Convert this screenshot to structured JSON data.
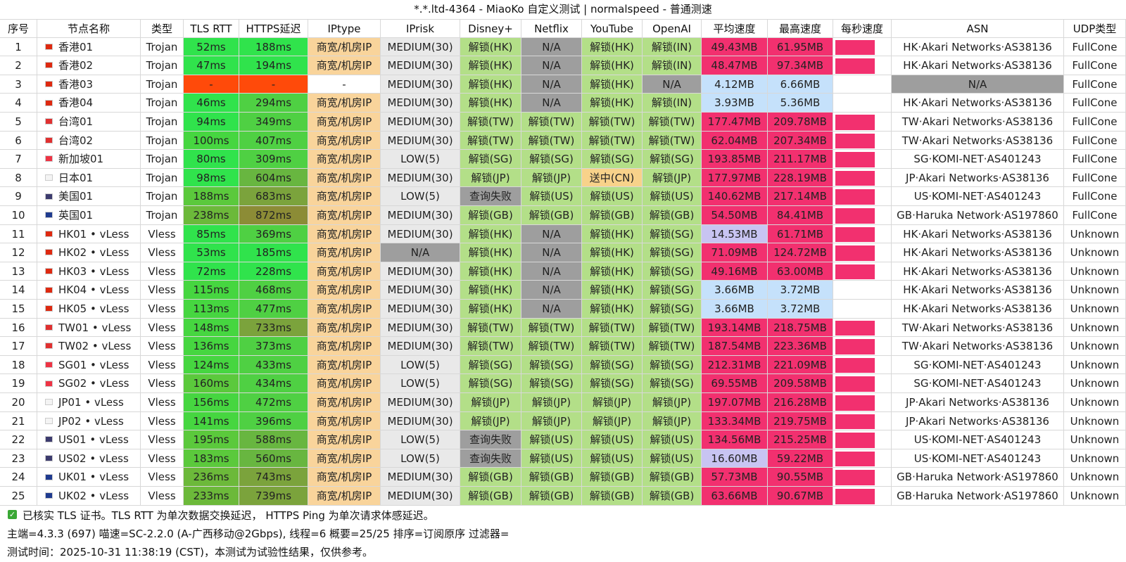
{
  "title": "*.*.ltd-4364 - MiaoKo 自定义测试 | normalspeed - 普通测速",
  "columns": [
    "序号",
    "节点名称",
    "类型",
    "TLS RTT",
    "HTTPS延迟",
    "IPtype",
    "IPrisk",
    "Disney+",
    "Netflix",
    "YouTube",
    "OpenAI",
    "平均速度",
    "最高速度",
    "每秒速度",
    "ASN",
    "UDP类型"
  ],
  "rows": [
    [
      "1",
      "香港01",
      "Trojan",
      "52ms",
      "188ms",
      "商宽/机房IP",
      "MEDIUM(30)",
      "解锁(HK)",
      "N/A",
      "解锁(HK)",
      "解锁(IN)",
      "49.43MB",
      "61.95MB",
      null,
      "HK·Akari Networks·AS38136",
      "FullCone"
    ],
    [
      "2",
      "香港02",
      "Trojan",
      "47ms",
      "194ms",
      "商宽/机房IP",
      "MEDIUM(30)",
      "解锁(HK)",
      "N/A",
      "解锁(HK)",
      "解锁(IN)",
      "48.47MB",
      "97.34MB",
      null,
      "HK·Akari Networks·AS38136",
      "FullCone"
    ],
    [
      "3",
      "香港03",
      "Trojan",
      "-",
      "-",
      "-",
      "MEDIUM(30)",
      "解锁(HK)",
      "N/A",
      "解锁(HK)",
      "N/A",
      "4.12MB",
      "6.66MB",
      null,
      "N/A",
      "FullCone"
    ],
    [
      "4",
      "香港04",
      "Trojan",
      "46ms",
      "294ms",
      "商宽/机房IP",
      "MEDIUM(30)",
      "解锁(HK)",
      "N/A",
      "解锁(HK)",
      "解锁(IN)",
      "3.93MB",
      "5.36MB",
      null,
      "HK·Akari Networks·AS38136",
      "FullCone"
    ],
    [
      "5",
      "台湾01",
      "Trojan",
      "94ms",
      "349ms",
      "商宽/机房IP",
      "MEDIUM(30)",
      "解锁(TW)",
      "解锁(TW)",
      "解锁(TW)",
      "解锁(TW)",
      "177.47MB",
      "209.78MB",
      null,
      "TW·Akari Networks·AS38136",
      "FullCone"
    ],
    [
      "6",
      "台湾02",
      "Trojan",
      "100ms",
      "407ms",
      "商宽/机房IP",
      "MEDIUM(30)",
      "解锁(TW)",
      "解锁(TW)",
      "解锁(TW)",
      "解锁(TW)",
      "62.04MB",
      "207.34MB",
      null,
      "TW·Akari Networks·AS38136",
      "FullCone"
    ],
    [
      "7",
      "新加坡01",
      "Trojan",
      "80ms",
      "309ms",
      "商宽/机房IP",
      "LOW(5)",
      "解锁(SG)",
      "解锁(SG)",
      "解锁(SG)",
      "解锁(SG)",
      "193.85MB",
      "211.17MB",
      null,
      "SG·KOMI-NET·AS401243",
      "FullCone"
    ],
    [
      "8",
      "日本01",
      "Trojan",
      "98ms",
      "604ms",
      "商宽/机房IP",
      "MEDIUM(30)",
      "解锁(JP)",
      "解锁(JP)",
      "送中(CN)",
      "解锁(JP)",
      "177.97MB",
      "228.19MB",
      null,
      "JP·Akari Networks·AS38136",
      "FullCone"
    ],
    [
      "9",
      "美国01",
      "Trojan",
      "188ms",
      "683ms",
      "商宽/机房IP",
      "LOW(5)",
      "查询失败",
      "解锁(US)",
      "解锁(US)",
      "解锁(US)",
      "140.62MB",
      "217.14MB",
      null,
      "US·KOMI-NET·AS401243",
      "FullCone"
    ],
    [
      "10",
      "英国01",
      "Trojan",
      "238ms",
      "872ms",
      "商宽/机房IP",
      "MEDIUM(30)",
      "解锁(GB)",
      "解锁(GB)",
      "解锁(GB)",
      "解锁(GB)",
      "54.50MB",
      "84.41MB",
      null,
      "GB·Haruka Network·AS197860",
      "FullCone"
    ],
    [
      "11",
      "HK01 • vLess",
      "Vless",
      "85ms",
      "369ms",
      "商宽/机房IP",
      "MEDIUM(30)",
      "解锁(HK)",
      "N/A",
      "解锁(HK)",
      "解锁(SG)",
      "14.53MB",
      "61.71MB",
      null,
      "HK·Akari Networks·AS38136",
      "Unknown"
    ],
    [
      "12",
      "HK02 • vLess",
      "Vless",
      "53ms",
      "185ms",
      "商宽/机房IP",
      "N/A",
      "解锁(HK)",
      "N/A",
      "解锁(HK)",
      "解锁(SG)",
      "71.09MB",
      "124.72MB",
      null,
      "HK·Akari Networks·AS38136",
      "Unknown"
    ],
    [
      "13",
      "HK03 • vLess",
      "Vless",
      "72ms",
      "228ms",
      "商宽/机房IP",
      "MEDIUM(30)",
      "解锁(HK)",
      "N/A",
      "解锁(HK)",
      "解锁(SG)",
      "49.16MB",
      "63.00MB",
      null,
      "HK·Akari Networks·AS38136",
      "Unknown"
    ],
    [
      "14",
      "HK04 • vLess",
      "Vless",
      "115ms",
      "468ms",
      "商宽/机房IP",
      "MEDIUM(30)",
      "解锁(HK)",
      "N/A",
      "解锁(HK)",
      "解锁(SG)",
      "3.66MB",
      "3.72MB",
      null,
      "HK·Akari Networks·AS38136",
      "Unknown"
    ],
    [
      "15",
      "HK05 • vLess",
      "Vless",
      "113ms",
      "477ms",
      "商宽/机房IP",
      "MEDIUM(30)",
      "解锁(HK)",
      "N/A",
      "解锁(HK)",
      "解锁(SG)",
      "3.66MB",
      "3.72MB",
      null,
      "HK·Akari Networks·AS38136",
      "Unknown"
    ],
    [
      "16",
      "TW01 • vLess",
      "Vless",
      "148ms",
      "733ms",
      "商宽/机房IP",
      "MEDIUM(30)",
      "解锁(TW)",
      "解锁(TW)",
      "解锁(TW)",
      "解锁(TW)",
      "193.14MB",
      "218.75MB",
      null,
      "TW·Akari Networks·AS38136",
      "Unknown"
    ],
    [
      "17",
      "TW02 • vLess",
      "Vless",
      "136ms",
      "373ms",
      "商宽/机房IP",
      "MEDIUM(30)",
      "解锁(TW)",
      "解锁(TW)",
      "解锁(TW)",
      "解锁(TW)",
      "187.54MB",
      "223.36MB",
      null,
      "TW·Akari Networks·AS38136",
      "Unknown"
    ],
    [
      "18",
      "SG01 • vLess",
      "Vless",
      "124ms",
      "433ms",
      "商宽/机房IP",
      "LOW(5)",
      "解锁(SG)",
      "解锁(SG)",
      "解锁(SG)",
      "解锁(SG)",
      "212.31MB",
      "221.09MB",
      null,
      "SG·KOMI-NET·AS401243",
      "Unknown"
    ],
    [
      "19",
      "SG02 • vLess",
      "Vless",
      "160ms",
      "434ms",
      "商宽/机房IP",
      "LOW(5)",
      "解锁(SG)",
      "解锁(SG)",
      "解锁(SG)",
      "解锁(SG)",
      "69.55MB",
      "209.58MB",
      null,
      "SG·KOMI-NET·AS401243",
      "Unknown"
    ],
    [
      "20",
      "JP01 • vLess",
      "Vless",
      "156ms",
      "472ms",
      "商宽/机房IP",
      "MEDIUM(30)",
      "解锁(JP)",
      "解锁(JP)",
      "解锁(JP)",
      "解锁(JP)",
      "197.07MB",
      "216.28MB",
      null,
      "JP·Akari Networks·AS38136",
      "Unknown"
    ],
    [
      "21",
      "JP02 • vLess",
      "Vless",
      "141ms",
      "396ms",
      "商宽/机房IP",
      "MEDIUM(30)",
      "解锁(JP)",
      "解锁(JP)",
      "解锁(JP)",
      "解锁(JP)",
      "133.34MB",
      "219.75MB",
      null,
      "JP·Akari Networks·AS38136",
      "Unknown"
    ],
    [
      "22",
      "US01 • vLess",
      "Vless",
      "195ms",
      "588ms",
      "商宽/机房IP",
      "LOW(5)",
      "查询失败",
      "解锁(US)",
      "解锁(US)",
      "解锁(US)",
      "134.56MB",
      "215.25MB",
      null,
      "US·KOMI-NET·AS401243",
      "Unknown"
    ],
    [
      "23",
      "US02 • vLess",
      "Vless",
      "183ms",
      "560ms",
      "商宽/机房IP",
      "LOW(5)",
      "查询失败",
      "解锁(US)",
      "解锁(US)",
      "解锁(US)",
      "16.60MB",
      "59.22MB",
      null,
      "US·KOMI-NET·AS401243",
      "Unknown"
    ],
    [
      "24",
      "UK01 • vLess",
      "Vless",
      "236ms",
      "743ms",
      "商宽/机房IP",
      "MEDIUM(30)",
      "解锁(GB)",
      "解锁(GB)",
      "解锁(GB)",
      "解锁(GB)",
      "57.73MB",
      "90.55MB",
      null,
      "GB·Haruka Network·AS197860",
      "Unknown"
    ],
    [
      "25",
      "UK02 • vLess",
      "Vless",
      "233ms",
      "739ms",
      "商宽/机房IP",
      "MEDIUM(30)",
      "解锁(GB)",
      "解锁(GB)",
      "解锁(GB)",
      "解锁(GB)",
      "63.66MB",
      "90.67MB",
      null,
      "GB·Haruka Network·AS197860",
      "Unknown"
    ]
  ],
  "row_colors": [
    [
      "#ffffff",
      "#ffffff",
      "#ffffff",
      "#30e34c",
      "#30e34c",
      "#f9d49b",
      "#e9e9e9",
      "#b3df88",
      "#9e9e9e",
      "#b3df88",
      "#b3df88",
      "#f2306f",
      "#f2306f",
      "#f2306f",
      "#ffffff",
      "#ffffff"
    ],
    [
      "#ffffff",
      "#ffffff",
      "#ffffff",
      "#30e34c",
      "#30e34c",
      "#f9d49b",
      "#e9e9e9",
      "#b3df88",
      "#9e9e9e",
      "#b3df88",
      "#b3df88",
      "#f2306f",
      "#f2306f",
      "#f2306f",
      "#ffffff",
      "#ffffff"
    ],
    [
      "#ffffff",
      "#ffffff",
      "#ffffff",
      "#ff4a0a",
      "#ff4a0a",
      "#ffffff",
      "#e9e9e9",
      "#b3df88",
      "#9e9e9e",
      "#b3df88",
      "#9e9e9e",
      "#c5e1fb",
      "#c5e1fb",
      "#ffffff",
      "#9e9e9e",
      "#ffffff"
    ],
    [
      "#ffffff",
      "#ffffff",
      "#ffffff",
      "#30e34c",
      "#4fd043",
      "#f9d49b",
      "#e9e9e9",
      "#b3df88",
      "#9e9e9e",
      "#b3df88",
      "#b3df88",
      "#c5e1fb",
      "#c5e1fb",
      "#ffffff",
      "#ffffff",
      "#ffffff"
    ],
    [
      "#ffffff",
      "#ffffff",
      "#ffffff",
      "#30e34c",
      "#4fd043",
      "#f9d49b",
      "#e9e9e9",
      "#b3df88",
      "#b3df88",
      "#b3df88",
      "#b3df88",
      "#f2306f",
      "#f2306f",
      "#f2306f",
      "#ffffff",
      "#ffffff"
    ],
    [
      "#ffffff",
      "#ffffff",
      "#ffffff",
      "#46d640",
      "#4fd043",
      "#f9d49b",
      "#e9e9e9",
      "#b3df88",
      "#b3df88",
      "#b3df88",
      "#b3df88",
      "#f2306f",
      "#f2306f",
      "#f2306f",
      "#ffffff",
      "#ffffff"
    ],
    [
      "#ffffff",
      "#ffffff",
      "#ffffff",
      "#30e34c",
      "#4fd043",
      "#f9d49b",
      "#e9e9e9",
      "#b3df88",
      "#b3df88",
      "#b3df88",
      "#b3df88",
      "#f2306f",
      "#f2306f",
      "#f2306f",
      "#ffffff",
      "#ffffff"
    ],
    [
      "#ffffff",
      "#ffffff",
      "#ffffff",
      "#30e34c",
      "#68b640",
      "#f9d49b",
      "#e9e9e9",
      "#b3df88",
      "#b3df88",
      "#f8d28a",
      "#b3df88",
      "#f2306f",
      "#f2306f",
      "#f2306f",
      "#ffffff",
      "#ffffff"
    ],
    [
      "#ffffff",
      "#ffffff",
      "#ffffff",
      "#5bc93c",
      "#7ba33c",
      "#f9d49b",
      "#e9e9e9",
      "#9e9e9e",
      "#b3df88",
      "#b3df88",
      "#b3df88",
      "#f2306f",
      "#f2306f",
      "#f2306f",
      "#ffffff",
      "#ffffff"
    ],
    [
      "#ffffff",
      "#ffffff",
      "#ffffff",
      "#6cb93a",
      "#8c8c36",
      "#f9d49b",
      "#e9e9e9",
      "#b3df88",
      "#b3df88",
      "#b3df88",
      "#b3df88",
      "#f2306f",
      "#f2306f",
      "#f2306f",
      "#ffffff",
      "#ffffff"
    ],
    [
      "#ffffff",
      "#ffffff",
      "#ffffff",
      "#30e34c",
      "#4fd043",
      "#f9d49b",
      "#e9e9e9",
      "#b3df88",
      "#9e9e9e",
      "#b3df88",
      "#b3df88",
      "#c8c4f2",
      "#f2306f",
      "#f2306f",
      "#ffffff",
      "#ffffff"
    ],
    [
      "#ffffff",
      "#ffffff",
      "#ffffff",
      "#30e34c",
      "#30e34c",
      "#f9d49b",
      "#9e9e9e",
      "#b3df88",
      "#9e9e9e",
      "#b3df88",
      "#b3df88",
      "#f2306f",
      "#f2306f",
      "#f2306f",
      "#ffffff",
      "#ffffff"
    ],
    [
      "#ffffff",
      "#ffffff",
      "#ffffff",
      "#30e34c",
      "#30e34c",
      "#f9d49b",
      "#e9e9e9",
      "#b3df88",
      "#9e9e9e",
      "#b3df88",
      "#b3df88",
      "#f2306f",
      "#f2306f",
      "#f2306f",
      "#ffffff",
      "#ffffff"
    ],
    [
      "#ffffff",
      "#ffffff",
      "#ffffff",
      "#46d640",
      "#4fd043",
      "#f9d49b",
      "#e9e9e9",
      "#b3df88",
      "#9e9e9e",
      "#b3df88",
      "#b3df88",
      "#c5e1fb",
      "#c5e1fb",
      "#ffffff",
      "#ffffff",
      "#ffffff"
    ],
    [
      "#ffffff",
      "#ffffff",
      "#ffffff",
      "#46d640",
      "#4fd043",
      "#f9d49b",
      "#e9e9e9",
      "#b3df88",
      "#9e9e9e",
      "#b3df88",
      "#b3df88",
      "#c5e1fb",
      "#c5e1fb",
      "#ffffff",
      "#ffffff",
      "#ffffff"
    ],
    [
      "#ffffff",
      "#ffffff",
      "#ffffff",
      "#46d640",
      "#7ba33c",
      "#f9d49b",
      "#e9e9e9",
      "#b3df88",
      "#b3df88",
      "#b3df88",
      "#b3df88",
      "#f2306f",
      "#f2306f",
      "#f2306f",
      "#ffffff",
      "#ffffff"
    ],
    [
      "#ffffff",
      "#ffffff",
      "#ffffff",
      "#46d640",
      "#4fd043",
      "#f9d49b",
      "#e9e9e9",
      "#b3df88",
      "#b3df88",
      "#b3df88",
      "#b3df88",
      "#f2306f",
      "#f2306f",
      "#f2306f",
      "#ffffff",
      "#ffffff"
    ],
    [
      "#ffffff",
      "#ffffff",
      "#ffffff",
      "#46d640",
      "#4fd043",
      "#f9d49b",
      "#e9e9e9",
      "#b3df88",
      "#b3df88",
      "#b3df88",
      "#b3df88",
      "#f2306f",
      "#f2306f",
      "#f2306f",
      "#ffffff",
      "#ffffff"
    ],
    [
      "#ffffff",
      "#ffffff",
      "#ffffff",
      "#5bc93c",
      "#4fd043",
      "#f9d49b",
      "#e9e9e9",
      "#b3df88",
      "#b3df88",
      "#b3df88",
      "#b3df88",
      "#f2306f",
      "#f2306f",
      "#f2306f",
      "#ffffff",
      "#ffffff"
    ],
    [
      "#ffffff",
      "#ffffff",
      "#ffffff",
      "#46d640",
      "#4fd043",
      "#f9d49b",
      "#e9e9e9",
      "#b3df88",
      "#b3df88",
      "#b3df88",
      "#b3df88",
      "#f2306f",
      "#f2306f",
      "#f2306f",
      "#ffffff",
      "#ffffff"
    ],
    [
      "#ffffff",
      "#ffffff",
      "#ffffff",
      "#46d640",
      "#4fd043",
      "#f9d49b",
      "#e9e9e9",
      "#b3df88",
      "#b3df88",
      "#b3df88",
      "#b3df88",
      "#f2306f",
      "#f2306f",
      "#f2306f",
      "#ffffff",
      "#ffffff"
    ],
    [
      "#ffffff",
      "#ffffff",
      "#ffffff",
      "#5bc93c",
      "#68b640",
      "#f9d49b",
      "#e9e9e9",
      "#9e9e9e",
      "#b3df88",
      "#b3df88",
      "#b3df88",
      "#f2306f",
      "#f2306f",
      "#f2306f",
      "#ffffff",
      "#ffffff"
    ],
    [
      "#ffffff",
      "#ffffff",
      "#ffffff",
      "#5bc93c",
      "#68b640",
      "#f9d49b",
      "#e9e9e9",
      "#9e9e9e",
      "#b3df88",
      "#b3df88",
      "#b3df88",
      "#c8c4f2",
      "#f2306f",
      "#f2306f",
      "#ffffff",
      "#ffffff"
    ],
    [
      "#ffffff",
      "#ffffff",
      "#ffffff",
      "#6cb93a",
      "#7ba33c",
      "#f9d49b",
      "#e9e9e9",
      "#b3df88",
      "#b3df88",
      "#b3df88",
      "#b3df88",
      "#f2306f",
      "#f2306f",
      "#f2306f",
      "#ffffff",
      "#ffffff"
    ],
    [
      "#ffffff",
      "#ffffff",
      "#ffffff",
      "#6cb93a",
      "#7ba33c",
      "#f9d49b",
      "#e9e9e9",
      "#b3df88",
      "#b3df88",
      "#b3df88",
      "#b3df88",
      "#f2306f",
      "#f2306f",
      "#f2306f",
      "#ffffff",
      "#ffffff"
    ]
  ],
  "flag_colors": [
    "#de2910",
    "#de2910",
    "#de2910",
    "#de2910",
    "#e03030",
    "#e03030",
    "#ee3344",
    "#f4f4f4",
    "#3c3b6e",
    "#1f3b8f",
    "#de2910",
    "#de2910",
    "#de2910",
    "#de2910",
    "#de2910",
    "#e03030",
    "#e03030",
    "#ee3344",
    "#ee3344",
    "#f4f4f4",
    "#f4f4f4",
    "#3c3b6e",
    "#3c3b6e",
    "#1f3b8f",
    "#1f3b8f"
  ],
  "footer": [
    "已核实 TLS 证书。TLS RTT 为单次数据交换延迟， HTTPS Ping 为单次请求体感延迟。",
    "主端=4.3.3 (697) 喵速=SC-2.2.0 (A-广西移动@2Gbps), 线程=6 概要=25/25 排序=订阅原序 过滤器=",
    "测试时间：2025-10-31 11:38:19 (CST)，本测试为试验性结果，仅供参考。"
  ]
}
